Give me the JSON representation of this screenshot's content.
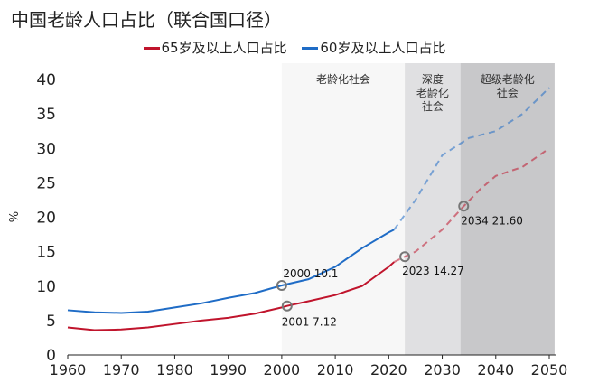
{
  "chart_data": {
    "type": "line",
    "title": "中国老龄人口占比（联合国口径）",
    "ylabel": "%",
    "xlim": [
      1960,
      2051
    ],
    "ylim": [
      0,
      40
    ],
    "xticks": [
      1960,
      1970,
      1980,
      1990,
      2000,
      2010,
      2020,
      2030,
      2040,
      2050
    ],
    "yticks": [
      0,
      5,
      10,
      15,
      20,
      25,
      30,
      35,
      40
    ],
    "legend_position": "top",
    "regions": [
      {
        "label": "老龄化社会",
        "from": 2000,
        "to": 2023,
        "color": "#f7f7f7"
      },
      {
        "label": "深度老龄化社会",
        "lines": [
          "深度",
          "老龄化",
          "社会"
        ],
        "from": 2023,
        "to": 2033.4,
        "color": "#e0e0e2"
      },
      {
        "label": "超级老龄化社会",
        "lines": [
          "超级老龄化",
          "社会"
        ],
        "from": 2033.4,
        "to": 2051,
        "color": "#c8c8ca"
      }
    ],
    "series": [
      {
        "name": "65岁及以上人口占比",
        "color": "#c0142c",
        "projection_from": 2021,
        "x": [
          1960,
          1965,
          1970,
          1975,
          1980,
          1985,
          1990,
          1995,
          2000,
          2001,
          2005,
          2010,
          2015,
          2020,
          2021,
          2023,
          2025,
          2030,
          2034,
          2037,
          2040,
          2045,
          2050
        ],
        "y": [
          4.0,
          3.6,
          3.7,
          4.0,
          4.5,
          5.0,
          5.4,
          6.0,
          6.9,
          7.12,
          7.8,
          8.7,
          10.0,
          12.8,
          13.5,
          14.27,
          15.0,
          18.2,
          21.6,
          24.0,
          26.0,
          27.3,
          30.0
        ]
      },
      {
        "name": "60岁及以上人口占比",
        "color": "#1f6cc6",
        "projection_from": 2021,
        "x": [
          1960,
          1965,
          1970,
          1975,
          1980,
          1985,
          1990,
          1995,
          2000,
          2005,
          2010,
          2015,
          2020,
          2021,
          2025,
          2030,
          2035,
          2040,
          2045,
          2050
        ],
        "y": [
          6.5,
          6.2,
          6.1,
          6.3,
          6.9,
          7.5,
          8.3,
          9.0,
          10.1,
          11.0,
          12.8,
          15.5,
          17.8,
          18.2,
          22.5,
          29.0,
          31.5,
          32.5,
          35.0,
          38.8
        ]
      }
    ],
    "annotations": [
      {
        "label": "2000  10.1",
        "x": 2000,
        "y": 10.1,
        "series": "60岁及以上人口占比"
      },
      {
        "label": "2001  7.12",
        "x": 2001,
        "y": 7.12,
        "series": "65岁及以上人口占比"
      },
      {
        "label": "2023  14.27",
        "x": 2023,
        "y": 14.27,
        "series": "65岁及以上人口占比"
      },
      {
        "label": "2034  21.60",
        "x": 2034,
        "y": 21.6,
        "series": "65岁及以上人口占比"
      }
    ]
  }
}
